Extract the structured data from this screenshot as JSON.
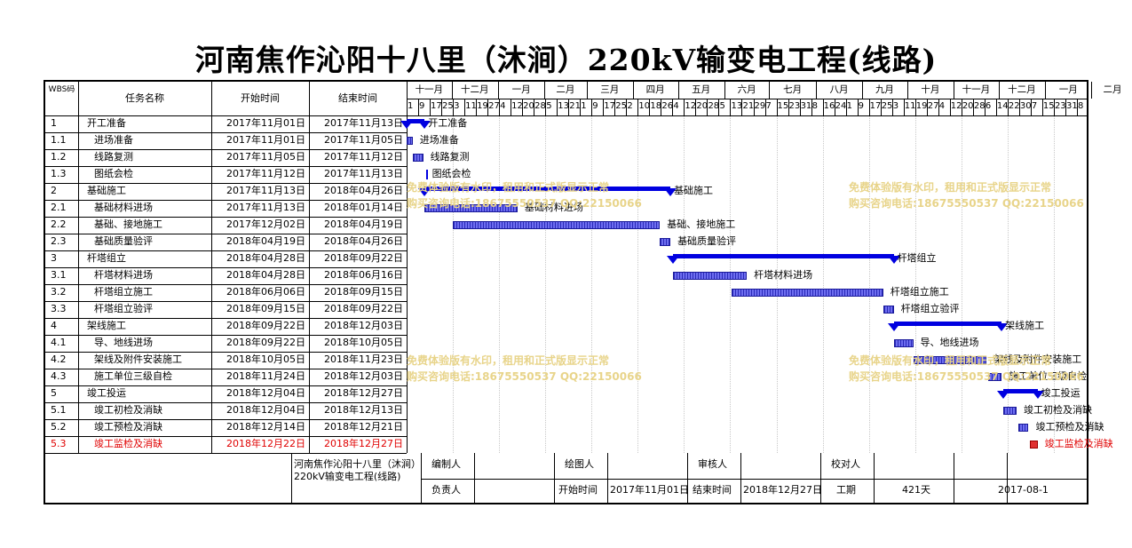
{
  "title": "河南焦作沁阳十八里（沐涧）220kV输变电工程(线路)",
  "columns": {
    "wbs": "WBS码",
    "name": "任务名称",
    "start": "开始时间",
    "end": "结束时间"
  },
  "months": [
    "十一月",
    "十二月",
    "一月",
    "二月",
    "三月",
    "四月",
    "五月",
    "六月",
    "七月",
    "八月",
    "九月",
    "十月",
    "十一月",
    "十二月",
    "一月",
    "二月"
  ],
  "ticks": [
    "1",
    "9",
    "17",
    "25",
    "3",
    "11",
    "19",
    "27",
    "4",
    "12",
    "20",
    "28",
    "5",
    "13",
    "21",
    "1",
    "9",
    "17",
    "25",
    "2",
    "10",
    "18",
    "26",
    "4",
    "12",
    "20",
    "28",
    "5",
    "13",
    "21",
    "29",
    "7",
    "15",
    "23",
    "31",
    "8",
    "16",
    "24",
    "1",
    "9",
    "17",
    "25",
    "3",
    "11",
    "19",
    "27",
    "4",
    "12",
    "20",
    "28",
    "6",
    "14",
    "22",
    "30",
    "7",
    "15",
    "23",
    "31",
    "8"
  ],
  "tasks": [
    {
      "wbs": "1",
      "name": "开工准备",
      "start": "2017年11月01日",
      "end": "2017年11月13日",
      "level": 0,
      "type": "summary",
      "s": 0,
      "e": 12
    },
    {
      "wbs": "1.1",
      "name": "进场准备",
      "start": "2017年11月01日",
      "end": "2017年11月05日",
      "level": 1,
      "type": "task",
      "s": 0,
      "e": 4
    },
    {
      "wbs": "1.2",
      "name": "线路复测",
      "start": "2017年11月05日",
      "end": "2017年11月12日",
      "level": 1,
      "type": "task",
      "s": 4,
      "e": 11
    },
    {
      "wbs": "1.3",
      "name": "图纸会检",
      "start": "2017年11月12日",
      "end": "2017年11月13日",
      "level": 1,
      "type": "milestone",
      "s": 11,
      "e": 12
    },
    {
      "wbs": "2",
      "name": "基础施工",
      "start": "2017年11月13日",
      "end": "2018年04月26日",
      "level": 0,
      "type": "summary",
      "s": 12,
      "e": 176
    },
    {
      "wbs": "2.1",
      "name": "基础材料进场",
      "start": "2017年11月13日",
      "end": "2018年01月14日",
      "level": 1,
      "type": "task",
      "s": 12,
      "e": 74
    },
    {
      "wbs": "2.2",
      "name": "基础、接地施工",
      "start": "2017年12月02日",
      "end": "2018年04月19日",
      "level": 1,
      "type": "task",
      "s": 31,
      "e": 169
    },
    {
      "wbs": "2.3",
      "name": "基础质量验评",
      "start": "2018年04月19日",
      "end": "2018年04月26日",
      "level": 1,
      "type": "task",
      "s": 169,
      "e": 176
    },
    {
      "wbs": "3",
      "name": "杆塔组立",
      "start": "2018年04月28日",
      "end": "2018年09月22日",
      "level": 0,
      "type": "summary",
      "s": 178,
      "e": 325
    },
    {
      "wbs": "3.1",
      "name": "杆塔材料进场",
      "start": "2018年04月28日",
      "end": "2018年06月16日",
      "level": 1,
      "type": "task",
      "s": 178,
      "e": 227
    },
    {
      "wbs": "3.2",
      "name": "杆塔组立施工",
      "start": "2018年06月06日",
      "end": "2018年09月15日",
      "level": 1,
      "type": "task",
      "s": 217,
      "e": 318
    },
    {
      "wbs": "3.3",
      "name": "杆塔组立验评",
      "start": "2018年09月15日",
      "end": "2018年09月22日",
      "level": 1,
      "type": "task",
      "s": 318,
      "e": 325
    },
    {
      "wbs": "4",
      "name": "架线施工",
      "start": "2018年09月22日",
      "end": "2018年12月03日",
      "level": 0,
      "type": "summary",
      "s": 325,
      "e": 397
    },
    {
      "wbs": "4.1",
      "name": "导、地线进场",
      "start": "2018年09月22日",
      "end": "2018年10月05日",
      "level": 1,
      "type": "task",
      "s": 325,
      "e": 338
    },
    {
      "wbs": "4.2",
      "name": "架线及附件安装施工",
      "start": "2018年10月05日",
      "end": "2018年11月23日",
      "level": 1,
      "type": "task",
      "s": 338,
      "e": 387
    },
    {
      "wbs": "4.3",
      "name": "施工单位三级自检",
      "start": "2018年11月24日",
      "end": "2018年12月03日",
      "level": 1,
      "type": "task",
      "s": 388,
      "e": 397
    },
    {
      "wbs": "5",
      "name": "竣工投运",
      "start": "2018年12月04日",
      "end": "2018年12月27日",
      "level": 0,
      "type": "summary",
      "s": 398,
      "e": 421
    },
    {
      "wbs": "5.1",
      "name": "竣工初检及消缺",
      "start": "2018年12月04日",
      "end": "2018年12月13日",
      "level": 1,
      "type": "task",
      "s": 398,
      "e": 407
    },
    {
      "wbs": "5.2",
      "name": "竣工预检及消缺",
      "start": "2018年12月14日",
      "end": "2018年12月21日",
      "level": 1,
      "type": "task",
      "s": 408,
      "e": 415
    },
    {
      "wbs": "5.3",
      "name": "竣工监检及消缺",
      "start": "2018年12月22日",
      "end": "2018年12月27日",
      "level": 1,
      "type": "task",
      "s": 416,
      "e": 421,
      "critical": true
    }
  ],
  "watermark": {
    "line1": "免费体验版有水印，租用和正式版显示正常",
    "line2": "购买咨询电话:18675550537 QQ:22150066"
  },
  "footer": {
    "project": "河南焦作沁阳十八里（沐涧）220kV输变电工程(线路)",
    "compiler_label": "编制人",
    "drawer_label": "绘图人",
    "reviewer_label": "审核人",
    "checker_label": "校对人",
    "owner_label": "负责人",
    "start_label": "开始时间",
    "start_value": "2017年11月01日",
    "end_label": "结束时间",
    "end_value": "2018年12月27日",
    "duration_label": "工期",
    "duration_value": "421天",
    "date": "2017-08-1"
  },
  "colors": {
    "bar": "#3c3cd6",
    "summary": "#0000e0",
    "critical": "#e03030",
    "watermark": "#e8d48a"
  }
}
